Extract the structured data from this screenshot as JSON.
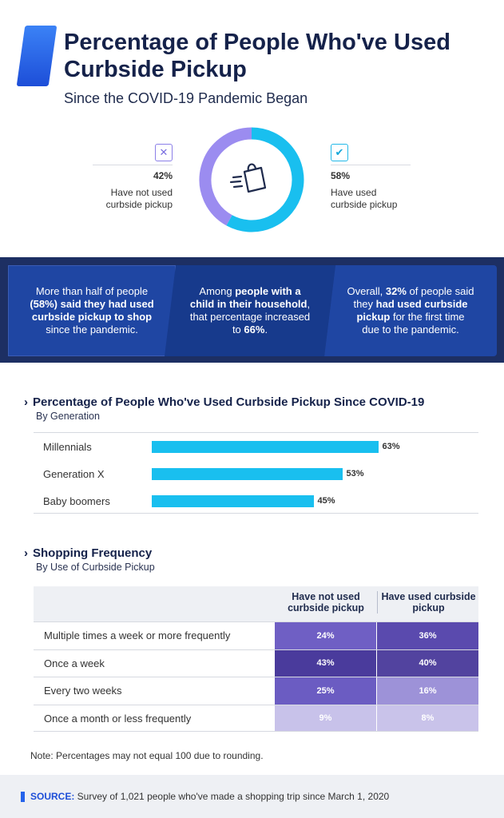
{
  "header": {
    "title": "Percentage of People Who've Used Curbside Pickup",
    "subtitle": "Since the COVID-19 Pandemic Began"
  },
  "donut": {
    "icon": "shopping-bag-icon",
    "left": {
      "icon": "x-mark-icon",
      "pct": "42%",
      "label": "Have not used curbside pickup"
    },
    "right": {
      "icon": "check-mark-icon",
      "pct": "58%",
      "label": "Have used curbside pickup"
    }
  },
  "callouts": {
    "panel1": {
      "pre": "More than half of people ",
      "bold": "(58%) said they had used curbside pickup to shop",
      "post": " since the pandemic."
    },
    "panel2": {
      "pre": "Among ",
      "bold": "people with a child in their household",
      "post": ", that percentage increased to ",
      "bold2": "66%",
      "end": "."
    },
    "panel3": {
      "pre": "Overall, ",
      "bold": "32%",
      "mid": " of people said they ",
      "bold2": "had used curbside pickup",
      "post": " for the first time due to the pandemic."
    }
  },
  "section1": {
    "title": "Percentage of People Who've Used Curbside Pickup Since COVID-19",
    "subtitle": "By Generation"
  },
  "section2": {
    "title": "Shopping Frequency",
    "subtitle": "By Use of Curbside Pickup"
  },
  "note": "Note: Percentages may not equal 100 due to rounding.",
  "footer": {
    "label": "SOURCE:",
    "text": " Survey of 1,021 people who've made a shopping trip since March 1, 2020"
  },
  "colors": {
    "used": "#19bfef",
    "not_used": "#9b8cf0",
    "bar": "#19bfef",
    "band": "#1d2f63"
  },
  "chart_data": [
    {
      "type": "pie",
      "categories": [
        "Have not used curbside pickup",
        "Have used curbside pickup"
      ],
      "values": [
        42,
        58
      ],
      "value_labels": [
        "42%",
        "58%"
      ]
    },
    {
      "type": "bar",
      "orientation": "horizontal",
      "title": "Percentage of People Who've Used Curbside Pickup Since COVID-19",
      "subtitle": "By Generation",
      "categories": [
        "Millennials",
        "Generation X",
        "Baby boomers"
      ],
      "values": [
        63,
        53,
        45
      ],
      "value_labels": [
        "63%",
        "53%",
        "45%"
      ],
      "xlim": [
        0,
        100
      ]
    },
    {
      "type": "table",
      "title": "Shopping Frequency",
      "subtitle": "By Use of Curbside Pickup",
      "columns": [
        "Have not used curbside pickup",
        "Have used curbside pickup"
      ],
      "rows": [
        {
          "label": "Multiple times a week or more frequently",
          "values": [
            "24%",
            "36%"
          ],
          "colors": [
            "#6f5fc4",
            "#5a4aae"
          ]
        },
        {
          "label": "Once a week",
          "values": [
            "43%",
            "40%"
          ],
          "colors": [
            "#4a3b9c",
            "#52439f"
          ]
        },
        {
          "label": "Every two weeks",
          "values": [
            "25%",
            "16%"
          ],
          "colors": [
            "#6b5cc2",
            "#9d92d8"
          ]
        },
        {
          "label": "Once a month or less frequently",
          "values": [
            "9%",
            "8%"
          ],
          "colors": [
            "#c8c2ea",
            "#c9c3ea"
          ]
        }
      ]
    }
  ]
}
